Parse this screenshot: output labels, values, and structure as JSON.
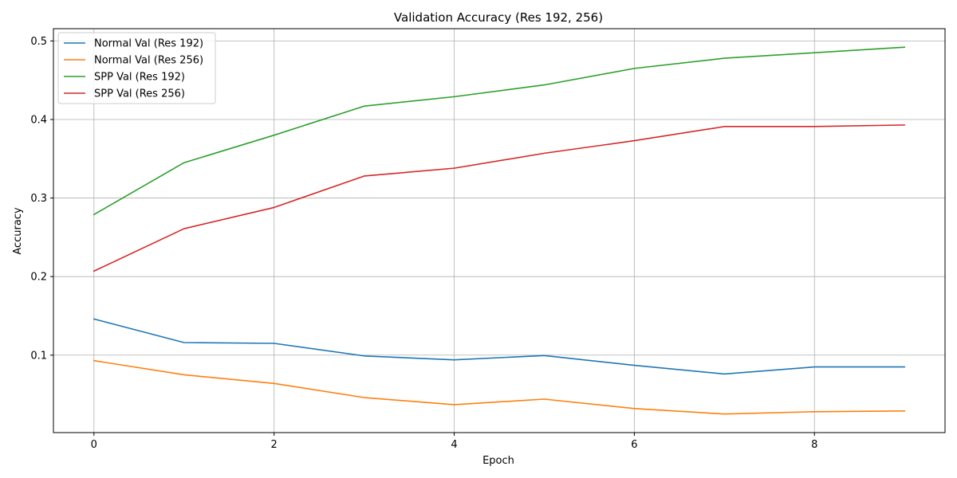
{
  "chart_data": {
    "type": "line",
    "title": "Validation Accuracy (Res 192, 256)",
    "xlabel": "Epoch",
    "ylabel": "Accuracy",
    "x": [
      0,
      1,
      2,
      3,
      4,
      5,
      6,
      7,
      8,
      9
    ],
    "xticks": [
      0,
      2,
      4,
      6,
      8
    ],
    "yticks": [
      0.1,
      0.2,
      0.3,
      0.4,
      0.5
    ],
    "xlim": [
      -0.45,
      9.45
    ],
    "ylim": [
      0.0014,
      0.5156
    ],
    "grid": true,
    "legend_position": "top-left",
    "series": [
      {
        "name": "Normal Val (Res 192)",
        "color": "#1f77b4",
        "values": [
          0.146,
          0.116,
          0.115,
          0.099,
          0.094,
          0.0995,
          0.087,
          0.076,
          0.085,
          0.085
        ]
      },
      {
        "name": "Normal Val (Res 256)",
        "color": "#ff7f0e",
        "values": [
          0.093,
          0.075,
          0.064,
          0.046,
          0.037,
          0.044,
          0.032,
          0.025,
          0.028,
          0.029
        ]
      },
      {
        "name": "SPP Val (Res 192)",
        "color": "#2ca02c",
        "values": [
          0.279,
          0.345,
          0.38,
          0.417,
          0.429,
          0.444,
          0.465,
          0.478,
          0.485,
          0.492
        ]
      },
      {
        "name": "SPP Val (Res 256)",
        "color": "#d62728",
        "values": [
          0.207,
          0.261,
          0.288,
          0.328,
          0.338,
          0.357,
          0.373,
          0.391,
          0.391,
          0.393
        ]
      }
    ]
  }
}
